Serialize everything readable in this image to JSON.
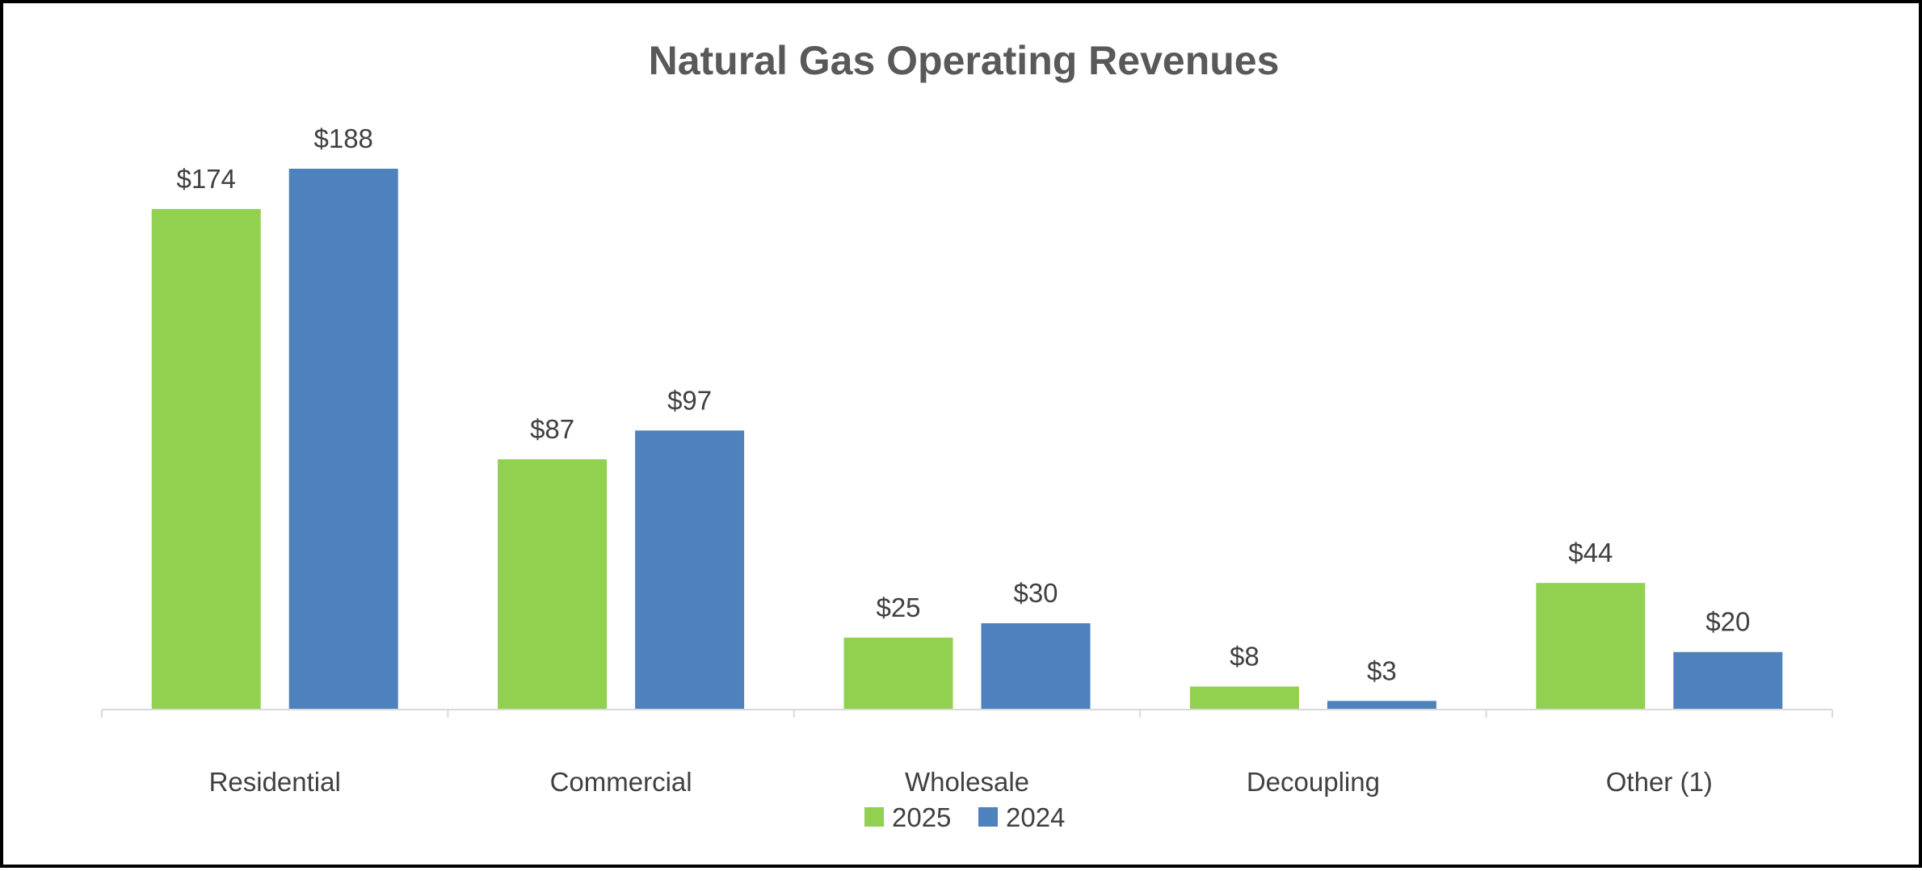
{
  "chart_data": {
    "type": "bar",
    "title": "Natural Gas Operating Revenues",
    "categories": [
      "Residential",
      "Commercial",
      "Wholesale",
      "Decoupling",
      "Other (1)"
    ],
    "series": [
      {
        "name": "2025",
        "color": "#92D050",
        "values": [
          174,
          87,
          25,
          8,
          44
        ],
        "labels": [
          "$174",
          "$87",
          "$25",
          "$8",
          "$44"
        ]
      },
      {
        "name": "2024",
        "color": "#4F81BD",
        "values": [
          188,
          97,
          30,
          3,
          20
        ],
        "labels": [
          "$188",
          "$97",
          "$30",
          "$3",
          "$20"
        ]
      }
    ],
    "xlabel": "",
    "ylabel": "",
    "ylim": [
      0,
      188
    ],
    "grid": false,
    "legend_position": "bottom",
    "axis_color": "#D9D9D9"
  }
}
